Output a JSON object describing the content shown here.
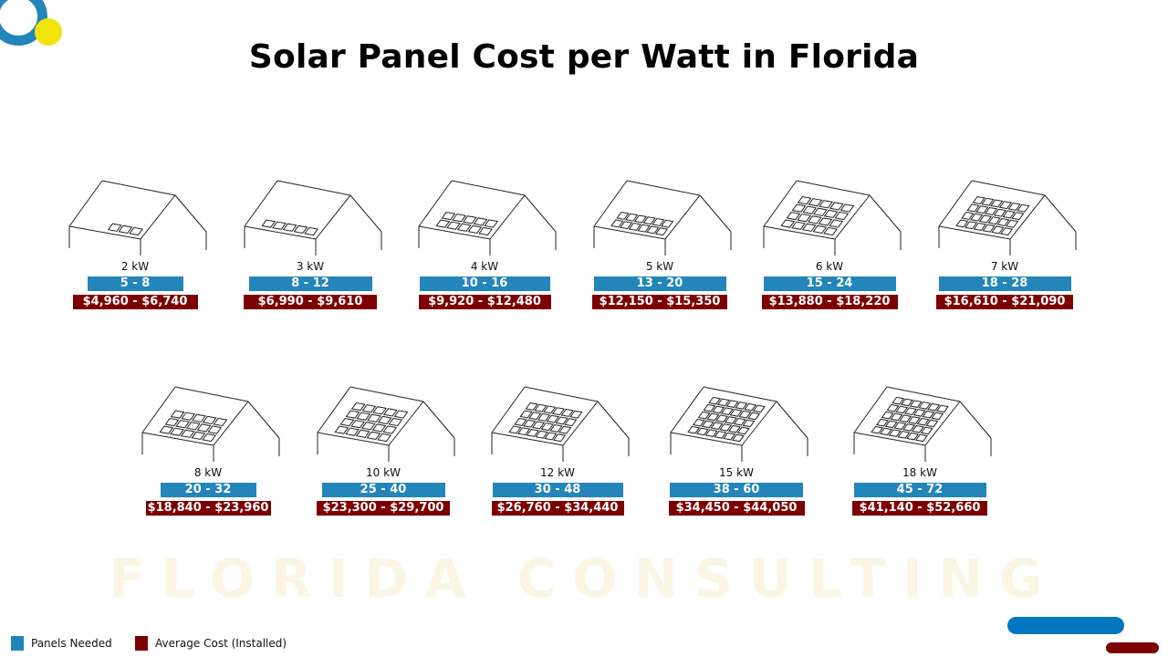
{
  "title": "Solar Panel Cost per Watt in Florida",
  "watermark": "FLORIDA CONSULTING",
  "colors": {
    "panels": "#2385ba",
    "cost": "#7d0000",
    "logo_ring": "#2385ba",
    "logo_dot": "#f2e50b"
  },
  "systems": [
    {
      "size": "2 kW",
      "panels": "5 - 8",
      "cost": "$4,960 - $6,740"
    },
    {
      "size": "3 kW",
      "panels": "8 - 12",
      "cost": "$6,990 - $9,610"
    },
    {
      "size": "4 kW",
      "panels": "10 - 16",
      "cost": "$9,920 - $12,480"
    },
    {
      "size": "5 kW",
      "panels": "13 - 20",
      "cost": "$12,150 - $15,350"
    },
    {
      "size": "6 kW",
      "panels": "15 - 24",
      "cost": "$13,880 - $18,220"
    },
    {
      "size": "7 kW",
      "panels": "18 - 28",
      "cost": "$16,610 - $21,090"
    },
    {
      "size": "8 kW",
      "panels": "20 - 32",
      "cost": "$18,840 - $23,960"
    },
    {
      "size": "10 kW",
      "panels": "25 - 40",
      "cost": "$23,300 - $29,700"
    },
    {
      "size": "12 kW",
      "panels": "30 - 48",
      "cost": "$26,760 - $34,440"
    },
    {
      "size": "15 kW",
      "panels": "38 - 60",
      "cost": "$34,450 - $44,050"
    },
    {
      "size": "18 kW",
      "panels": "45 - 72",
      "cost": "$41,140 - $52,660"
    }
  ],
  "legend": {
    "panels": "Panels Needed",
    "cost": "Average Cost (Installed)"
  }
}
